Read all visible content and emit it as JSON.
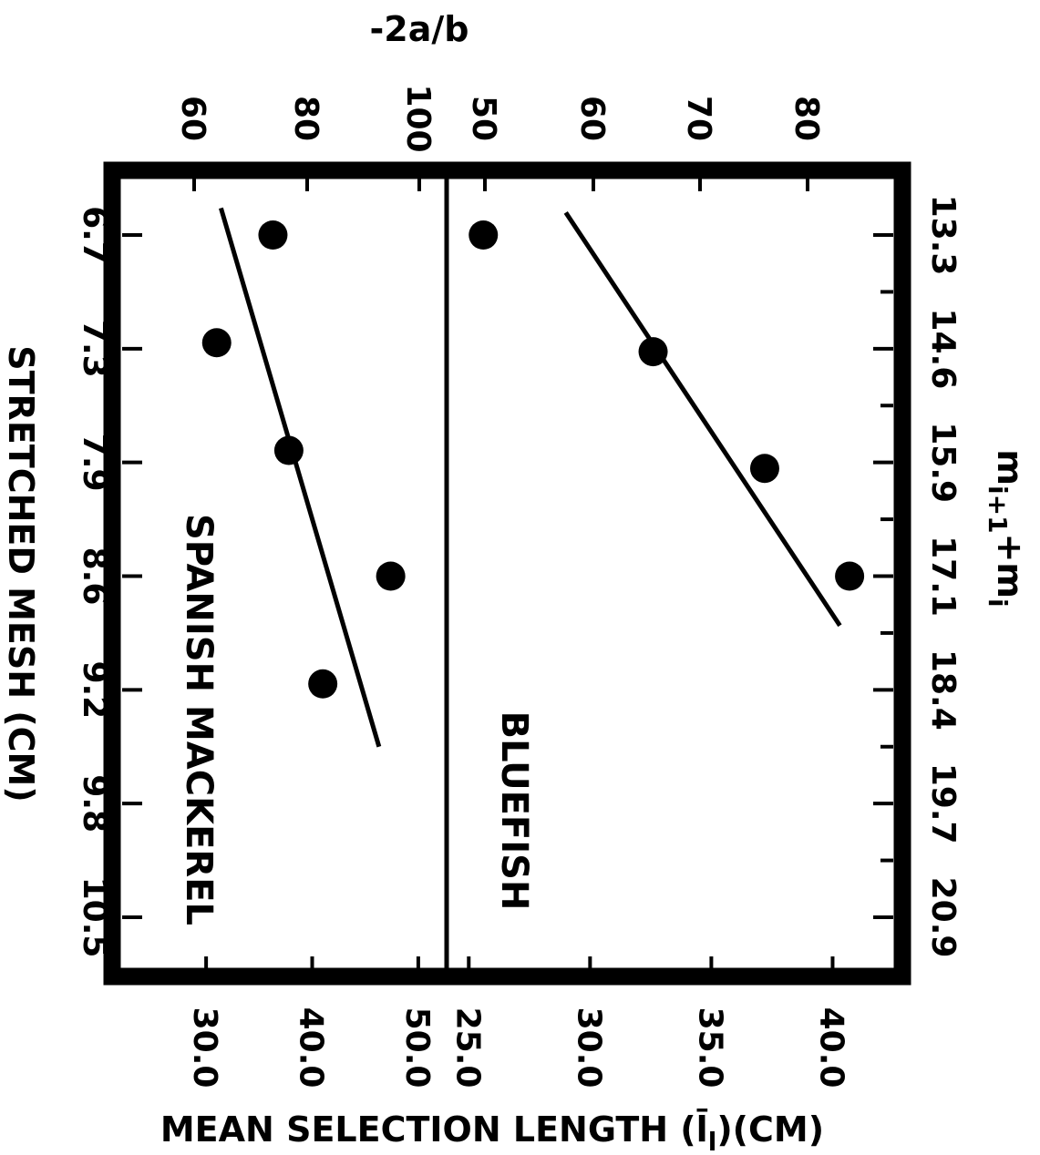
{
  "chart_data": [
    {
      "name": "bluefish",
      "type": "scatter",
      "series_label": "BLUEFISH",
      "mesh_axis": {
        "label": "m",
        "label_sub1": "i+1",
        "label_plus": "+m",
        "label_sub2": "i",
        "ticks": [
          "13.3",
          "14.6",
          "15.9",
          "17.1",
          "18.4",
          "19.7",
          "20.9"
        ],
        "range": [
          13.3,
          20.9
        ]
      },
      "length_axis": {
        "label": "MEAN SELECTION LENGTH (",
        "label_symbol": "l̄",
        "label_sub": "l",
        "label_end": ")(CM)",
        "ticks": [
          "25.0",
          "30.0",
          "35.0",
          "40.0"
        ],
        "range": [
          24.2,
          42.5
        ]
      },
      "secondary_axis": {
        "ticks": [
          "50",
          "60",
          "70",
          "80"
        ],
        "tick_values": [
          50,
          60,
          70,
          80
        ]
      },
      "points": [
        {
          "x": 13.3,
          "y": 25.6
        },
        {
          "x": 14.6,
          "y": 32.6
        },
        {
          "x": 15.9,
          "y": 37.2
        },
        {
          "x": 17.1,
          "y": 40.7
        }
      ],
      "fit_line": [
        {
          "x": 13.05,
          "y": 29.0
        },
        {
          "x": 17.65,
          "y": 40.3
        }
      ]
    },
    {
      "name": "spanish-mackerel",
      "type": "scatter",
      "series_label": "SPANISH MACKEREL",
      "mesh_axis": {
        "label": "STRETCHED MESH (CM)",
        "ticks": [
          "6.7",
          "7.3",
          "7.9",
          "8.6",
          "9.2",
          "9.8",
          "10.5"
        ],
        "range": [
          6.7,
          10.5
        ]
      },
      "length_axis": {
        "ticks": [
          "30.0",
          "40.0",
          "50.0"
        ],
        "range": [
          22.0,
          52.5
        ]
      },
      "secondary_axis": {
        "label": "-2a/b",
        "ticks": [
          "60",
          "80",
          "100"
        ],
        "tick_values": [
          60,
          80,
          100
        ]
      },
      "points": [
        {
          "x": 6.7,
          "y": 36.3
        },
        {
          "x": 7.3,
          "y": 31.0
        },
        {
          "x": 7.9,
          "y": 37.8
        },
        {
          "x": 8.6,
          "y": 47.4
        },
        {
          "x": 9.2,
          "y": 41.0
        }
      ],
      "fit_line": [
        {
          "x": 6.55,
          "y": 31.4
        },
        {
          "x": 9.55,
          "y": 46.3
        }
      ]
    }
  ]
}
